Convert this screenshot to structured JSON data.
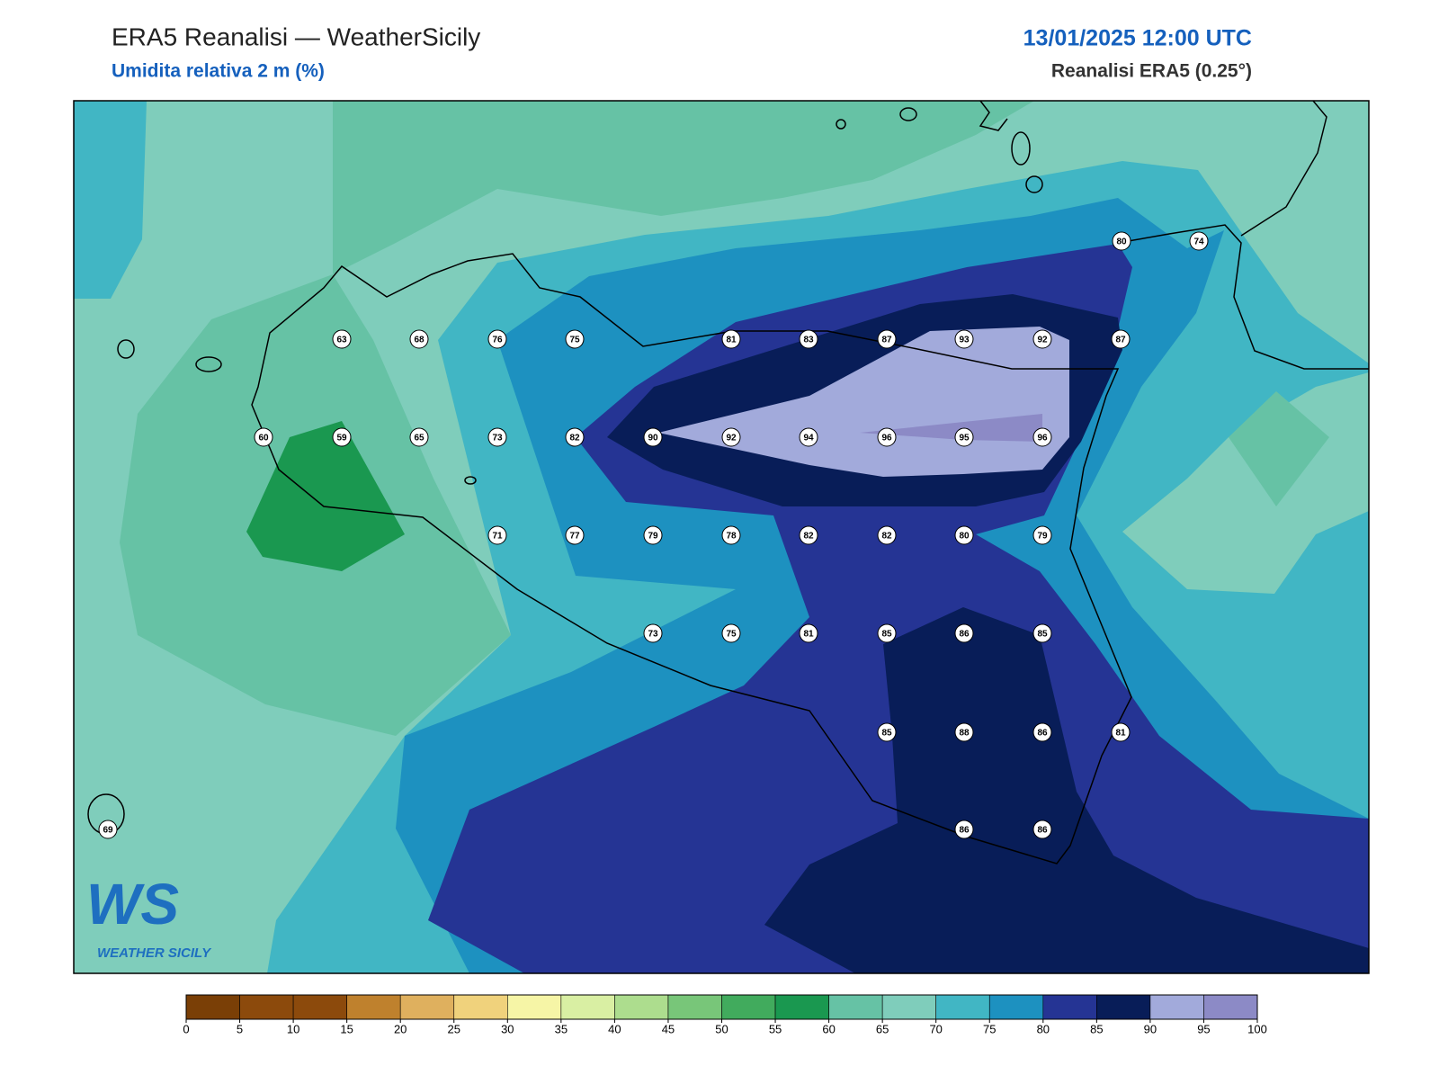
{
  "header": {
    "title": "ERA5 Reanalisi — WeatherSicily",
    "subtitle": "Umidita relativa 2 m (%)",
    "datetime": "13/01/2025 12:00 UTC",
    "source": "Reanalisi ERA5 (0.25°)"
  },
  "logo": {
    "mark": "WS",
    "text": "WEATHER SICILY"
  },
  "stations": [
    80,
    74,
    63,
    68,
    76,
    75,
    81,
    83,
    87,
    93,
    92,
    87,
    60,
    59,
    65,
    73,
    82,
    90,
    92,
    94,
    96,
    95,
    96,
    71,
    77,
    79,
    78,
    82,
    82,
    80,
    79,
    73,
    75,
    81,
    85,
    86,
    85,
    85,
    88,
    86,
    81,
    69,
    86,
    86
  ],
  "colorbar": {
    "ticks": [
      0,
      5,
      10,
      15,
      20,
      25,
      30,
      35,
      40,
      45,
      50,
      55,
      60,
      65,
      70,
      75,
      80,
      85,
      90,
      95,
      100
    ],
    "colors": [
      "#7a3f06",
      "#8c4a0c",
      "#8c4a0c",
      "#bf812d",
      "#dfb05e",
      "#f0d27c",
      "#f6f5a6",
      "#d9efa3",
      "#addd8e",
      "#78c679",
      "#41ab5d",
      "#1a9850",
      "#66c2a5",
      "#7fcdbb",
      "#41b6c4",
      "#1d91c0",
      "#253494",
      "#081d58",
      "#a2aadb",
      "#8c8ac6"
    ]
  }
}
